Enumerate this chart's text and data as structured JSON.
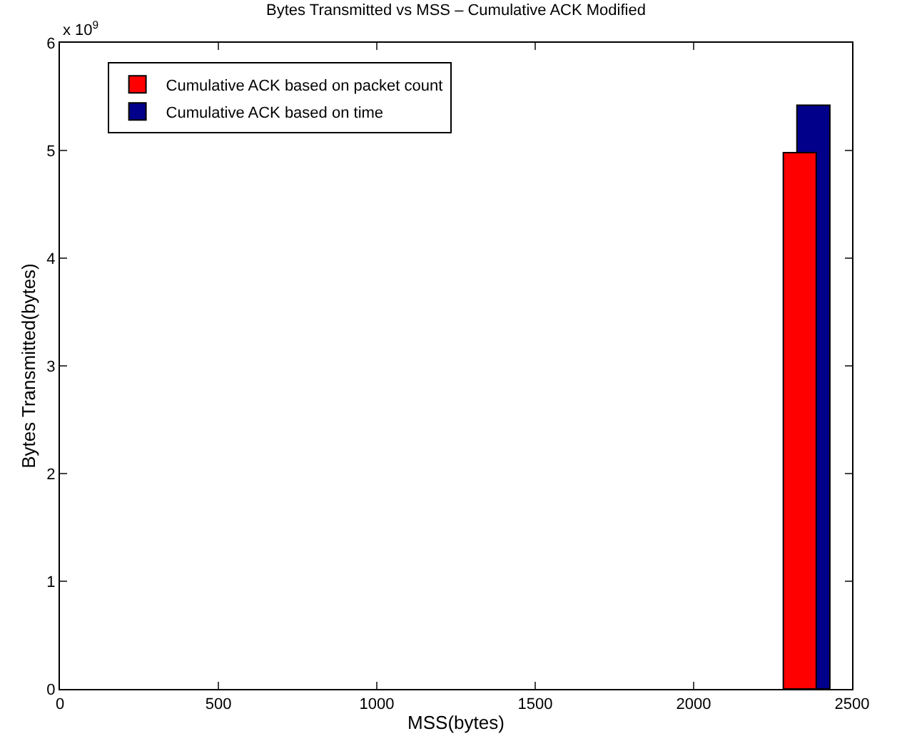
{
  "chart_data": {
    "type": "bar",
    "title": "Bytes Transmitted vs MSS – Cumulative ACK Modified",
    "xlabel": "MSS(bytes)",
    "ylabel": "Bytes Transmitted(bytes)",
    "series": [
      {
        "name": "Cumulative ACK based on packet count",
        "color": "#ff0000",
        "x": [
          2335
        ],
        "values": [
          4.98
        ]
      },
      {
        "name": "Cumulative ACK based on time",
        "color": "#00008b",
        "x": [
          2378
        ],
        "values": [
          5.42
        ]
      }
    ],
    "xlim": [
      0,
      2500
    ],
    "xticks": [
      0,
      500,
      1000,
      1500,
      2000,
      2500
    ],
    "ylim": [
      0,
      6
    ],
    "yticks": [
      0,
      1,
      2,
      3,
      4,
      5,
      6
    ],
    "annotations": [
      "x 10$^{9}$"
    ],
    "legend": "top left"
  }
}
